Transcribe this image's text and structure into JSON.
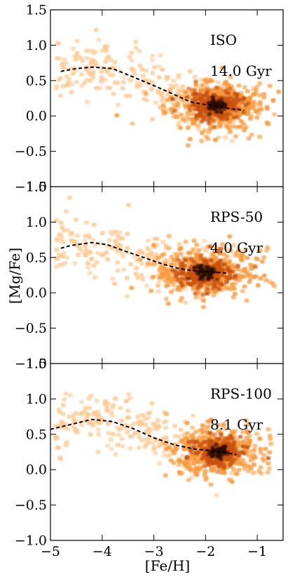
{
  "chart_data": {
    "type": "scatter",
    "xlabel": "[Fe/H]",
    "ylabel": "[Mg/Fe]",
    "xlim": [
      -5.0,
      -0.5
    ],
    "ylim": [
      -1.0,
      1.5
    ],
    "xticks": [
      -5,
      -4,
      -3,
      -2,
      -1
    ],
    "xtick_labels": [
      "−5",
      "−4",
      "−3",
      "−2",
      "−1"
    ],
    "yticks": [
      -1.0,
      -0.5,
      0.0,
      0.5,
      1.0,
      1.5
    ],
    "ytick_labels": [
      "−1.0",
      "−0.5",
      "0.0",
      "0.5",
      "1.0",
      "1.5"
    ],
    "colors": {
      "sparse": "#fbc890",
      "medium": "#f59a3c",
      "dense": "#c8500f",
      "densest": "#2a0f04",
      "trend_line": "#000000"
    },
    "panels": [
      {
        "label": "ISO",
        "age": "14.0 Gyr",
        "core": {
          "feh": -1.8,
          "mgfe": 0.15,
          "spread_feh": 0.28,
          "spread_mgfe": 0.12
        },
        "trend": {
          "feh": [
            -4.8,
            -4.5,
            -4.2,
            -3.8,
            -3.5,
            -3.0,
            -2.6,
            -2.3,
            -2.0,
            -1.7,
            -1.5,
            -1.25
          ],
          "mgfe": [
            0.63,
            0.67,
            0.69,
            0.67,
            0.58,
            0.43,
            0.3,
            0.2,
            0.16,
            0.13,
            0.1,
            0.08
          ]
        }
      },
      {
        "label": "RPS-50",
        "age": "4.0 Gyr",
        "core": {
          "feh": -2.0,
          "mgfe": 0.28,
          "spread_feh": 0.28,
          "spread_mgfe": 0.13
        },
        "trend": {
          "feh": [
            -4.8,
            -4.6,
            -4.2,
            -3.9,
            -3.6,
            -3.2,
            -2.8,
            -2.5,
            -2.2,
            -2.0,
            -1.6
          ],
          "mgfe": [
            0.63,
            0.67,
            0.71,
            0.68,
            0.6,
            0.5,
            0.4,
            0.34,
            0.31,
            0.3,
            0.28
          ]
        }
      },
      {
        "label": "RPS-100",
        "age": "8.1 Gyr",
        "core": {
          "feh": -1.75,
          "mgfe": 0.25,
          "spread_feh": 0.25,
          "spread_mgfe": 0.12
        },
        "trend": {
          "feh": [
            -5.0,
            -4.6,
            -4.2,
            -3.8,
            -3.4,
            -3.0,
            -2.6,
            -2.2,
            -1.9,
            -1.6,
            -1.4
          ],
          "mgfe": [
            0.57,
            0.64,
            0.71,
            0.68,
            0.58,
            0.45,
            0.35,
            0.29,
            0.27,
            0.24,
            0.21
          ]
        }
      }
    ]
  }
}
